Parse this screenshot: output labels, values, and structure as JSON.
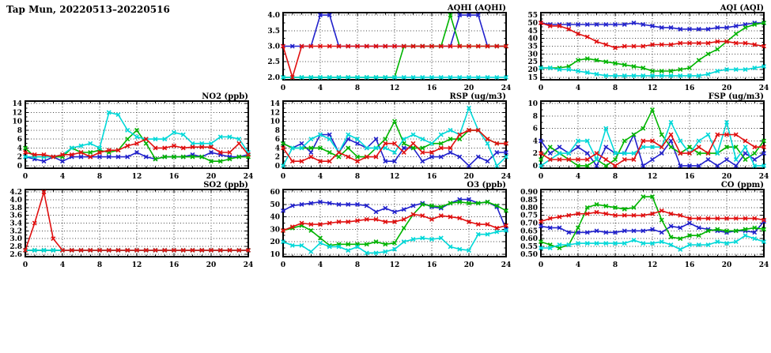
{
  "page": {
    "title": "Tap Mun, 20220513–20220516",
    "background": "#ffffff"
  },
  "colors": {
    "blue": "#2222cc",
    "green": "#00b400",
    "cyan": "#00d8d8",
    "red": "#e01010",
    "axis": "#000000",
    "grid": "#444444"
  },
  "chart_data": [
    {
      "id": "aqhi",
      "type": "line",
      "title": "AQHI (AQHI)",
      "grid": {
        "row": 0,
        "col": 1
      },
      "x_range": [
        0,
        24
      ],
      "x_step": 4,
      "x_minor": 1,
      "y_range": [
        2.0,
        4.0
      ],
      "y_step": 0.5,
      "y_decimals": 1,
      "series": [
        {
          "name": "series-blue",
          "color": "#2222cc",
          "values": [
            3,
            3,
            3,
            3,
            4,
            4,
            3,
            3,
            3,
            3,
            3,
            3,
            3,
            3,
            3,
            3,
            3,
            3,
            3,
            4,
            4,
            4,
            3,
            3,
            3
          ]
        },
        {
          "name": "series-green",
          "color": "#00b400",
          "values": [
            2,
            2,
            2,
            2,
            2,
            2,
            2,
            2,
            2,
            2,
            2,
            2,
            2,
            3,
            3,
            3,
            3,
            3,
            4,
            3,
            3,
            3,
            3,
            3,
            3
          ]
        },
        {
          "name": "series-cyan",
          "color": "#00d8d8",
          "values": [
            2,
            2,
            2,
            2,
            2,
            2,
            2,
            2,
            2,
            2,
            2,
            2,
            2,
            2,
            2,
            2,
            2,
            2,
            2,
            2,
            2,
            2,
            2,
            2,
            2
          ]
        },
        {
          "name": "series-red",
          "color": "#e01010",
          "values": [
            3,
            2,
            3,
            3,
            3,
            3,
            3,
            3,
            3,
            3,
            3,
            3,
            3,
            3,
            3,
            3,
            3,
            3,
            3,
            3,
            3,
            3,
            3,
            3,
            3
          ]
        }
      ]
    },
    {
      "id": "aqi",
      "type": "line",
      "title": "AQI (AQI)",
      "grid": {
        "row": 0,
        "col": 2
      },
      "x_range": [
        0,
        24
      ],
      "x_step": 4,
      "x_minor": 1,
      "y_range": [
        15,
        55
      ],
      "y_step": 5,
      "y_decimals": 0,
      "series": [
        {
          "name": "series-blue",
          "color": "#2222cc",
          "values": [
            50,
            49,
            49,
            49,
            49,
            49,
            49,
            49,
            49,
            49,
            50,
            49,
            48,
            47,
            47,
            46,
            46,
            46,
            46,
            47,
            47,
            48,
            49,
            50,
            50
          ]
        },
        {
          "name": "series-green",
          "color": "#00b400",
          "values": [
            21,
            21,
            21,
            22,
            26,
            27,
            26,
            25,
            24,
            23,
            22,
            21,
            19,
            19,
            19,
            20,
            21,
            26,
            30,
            33,
            38,
            43,
            47,
            49,
            50
          ]
        },
        {
          "name": "series-cyan",
          "color": "#00d8d8",
          "values": [
            21,
            21,
            20,
            20,
            19,
            18,
            17,
            16,
            16,
            16,
            16,
            16,
            16,
            16,
            16,
            16,
            16,
            16,
            17,
            19,
            20,
            20,
            20,
            21,
            22
          ]
        },
        {
          "name": "series-red",
          "color": "#e01010",
          "values": [
            50,
            48,
            48,
            46,
            43,
            41,
            38,
            36,
            34,
            35,
            35,
            35,
            36,
            36,
            36,
            37,
            37,
            37,
            37,
            38,
            38,
            37,
            37,
            36,
            35
          ]
        }
      ]
    },
    {
      "id": "no2",
      "type": "line",
      "title": "NO2 (ppb)",
      "grid": {
        "row": 1,
        "col": 0
      },
      "x_range": [
        0,
        24
      ],
      "x_step": 4,
      "x_minor": 1,
      "y_range": [
        0,
        14
      ],
      "y_step": 2,
      "y_decimals": 0,
      "series": [
        {
          "name": "series-blue",
          "color": "#2222cc",
          "values": [
            2,
            1.5,
            1,
            2,
            1,
            2,
            2,
            2,
            2,
            2,
            2,
            2,
            3,
            2,
            1.5,
            2,
            2,
            2,
            2.5,
            2,
            3,
            2.5,
            2,
            2,
            2.5
          ]
        },
        {
          "name": "series-green",
          "color": "#00b400",
          "values": [
            4,
            2,
            2,
            2,
            2,
            4,
            3,
            3,
            3.5,
            3,
            3.5,
            6,
            8,
            5,
            1.5,
            2,
            2,
            2,
            2,
            2,
            1,
            1,
            1.5,
            2,
            2
          ]
        },
        {
          "name": "series-cyan",
          "color": "#00d8d8",
          "values": [
            2,
            2,
            2,
            2,
            2.5,
            4,
            4.5,
            5,
            4,
            12,
            11.5,
            8,
            6.5,
            6,
            6,
            6,
            7.5,
            7,
            5,
            5,
            5,
            6.5,
            6.5,
            6,
            3
          ]
        },
        {
          "name": "series-red",
          "color": "#e01010",
          "values": [
            3,
            2.5,
            2.5,
            2,
            2.5,
            2.5,
            3,
            2,
            3,
            3.5,
            3.5,
            4.5,
            5,
            6,
            4,
            4,
            4.5,
            4,
            4.2,
            4.2,
            4.2,
            3,
            3,
            5,
            2.5
          ]
        }
      ]
    },
    {
      "id": "rsp",
      "type": "line",
      "title": "RSP (ug/m3)",
      "grid": {
        "row": 1,
        "col": 1
      },
      "x_range": [
        0,
        24
      ],
      "x_step": 4,
      "x_minor": 1,
      "y_range": [
        0,
        14
      ],
      "y_step": 2,
      "y_decimals": 0,
      "series": [
        {
          "name": "series-blue",
          "color": "#2222cc",
          "values": [
            5,
            4,
            5,
            3,
            7,
            7,
            3,
            6,
            5,
            4,
            6,
            1,
            1,
            4,
            4,
            1,
            2,
            2,
            3,
            2,
            0,
            2,
            1,
            3,
            3
          ]
        },
        {
          "name": "series-green",
          "color": "#00b400",
          "values": [
            5,
            4,
            4,
            4,
            4,
            3,
            2,
            4,
            2,
            2,
            4,
            6,
            10,
            5,
            4,
            4,
            5,
            5,
            6,
            6,
            8,
            8,
            6,
            5,
            5
          ]
        },
        {
          "name": "series-cyan",
          "color": "#00d8d8",
          "values": [
            0,
            4,
            4,
            6,
            7,
            6,
            3,
            7,
            6,
            4,
            4,
            4,
            3,
            6,
            7,
            6,
            5,
            7,
            8,
            7,
            13,
            8,
            5,
            0,
            2
          ]
        },
        {
          "name": "series-red",
          "color": "#e01010",
          "values": [
            4,
            1,
            1,
            2,
            1,
            1,
            3,
            2,
            1,
            2,
            2,
            5,
            5,
            3,
            5,
            3,
            3,
            4,
            4,
            7,
            8,
            8,
            6,
            5,
            5
          ]
        }
      ]
    },
    {
      "id": "fsp",
      "type": "line",
      "title": "FSP (ug/m3)",
      "grid": {
        "row": 1,
        "col": 2
      },
      "x_range": [
        0,
        24
      ],
      "x_step": 4,
      "x_minor": 1,
      "y_range": [
        0,
        10
      ],
      "y_step": 2,
      "y_decimals": 0,
      "series": [
        {
          "name": "series-blue",
          "color": "#2222cc",
          "values": [
            4,
            2,
            3,
            2,
            3,
            2,
            0,
            3,
            2,
            2,
            5,
            0,
            1,
            2,
            4,
            0,
            0,
            0,
            1,
            0,
            1,
            0,
            2,
            1,
            2
          ]
        },
        {
          "name": "series-green",
          "color": "#00b400",
          "values": [
            1,
            3,
            2,
            1,
            0,
            0,
            1,
            0,
            1,
            4,
            5,
            6,
            9,
            5,
            3,
            2,
            3,
            2,
            2,
            2,
            3,
            3,
            1,
            2,
            4
          ]
        },
        {
          "name": "series-cyan",
          "color": "#00d8d8",
          "values": [
            0,
            1,
            2,
            2,
            4,
            4,
            1,
            6,
            2,
            2,
            2,
            3,
            3,
            3,
            7,
            4,
            2,
            4,
            5,
            2,
            7,
            1,
            3,
            0,
            0
          ]
        },
        {
          "name": "series-red",
          "color": "#e01010",
          "values": [
            2,
            1,
            1,
            1,
            1,
            1,
            2,
            1,
            0,
            1,
            1,
            4,
            4,
            3,
            5,
            2,
            2,
            3,
            2,
            5,
            5,
            5,
            4,
            3,
            3
          ]
        }
      ]
    },
    {
      "id": "so2",
      "type": "line",
      "title": "SO2 (ppb)",
      "grid": {
        "row": 2,
        "col": 0
      },
      "x_range": [
        0,
        24
      ],
      "x_step": 4,
      "x_minor": 1,
      "y_range": [
        2.6,
        4.2
      ],
      "y_step": 0.2,
      "y_decimals": 1,
      "series": [
        {
          "name": "series-blue",
          "color": "#2222cc",
          "values": [
            2.7,
            2.7,
            2.7,
            2.7,
            2.7,
            2.7,
            2.7,
            2.7,
            2.7,
            2.7,
            2.7,
            2.7,
            2.7,
            2.7,
            2.7,
            2.7,
            2.7,
            2.7,
            2.7,
            2.7,
            2.7,
            2.7,
            2.7,
            2.7,
            2.7
          ]
        },
        {
          "name": "series-green",
          "color": "#00b400",
          "values": [
            2.7,
            2.7,
            2.7,
            2.7,
            2.7,
            2.7,
            2.7,
            2.7,
            2.7,
            2.7,
            2.7,
            2.7,
            2.7,
            2.7,
            2.7,
            2.7,
            2.7,
            2.7,
            2.7,
            2.7,
            2.7,
            2.7,
            2.7,
            2.7,
            2.7
          ]
        },
        {
          "name": "series-cyan",
          "color": "#00d8d8",
          "values": [
            2.7,
            2.7,
            2.7,
            2.7,
            2.7,
            2.7,
            2.7,
            2.7,
            2.7,
            2.7,
            2.7,
            2.7,
            2.7,
            2.7,
            2.7,
            2.7,
            2.7,
            2.7,
            2.7,
            2.7,
            2.7,
            2.7,
            2.7,
            2.7,
            2.7
          ]
        },
        {
          "name": "series-red",
          "color": "#e01010",
          "values": [
            2.7,
            3.4,
            4.2,
            3.0,
            2.7,
            2.7,
            2.7,
            2.7,
            2.7,
            2.7,
            2.7,
            2.7,
            2.7,
            2.7,
            2.7,
            2.7,
            2.7,
            2.7,
            2.7,
            2.7,
            2.7,
            2.7,
            2.7,
            2.7,
            2.7
          ]
        }
      ]
    },
    {
      "id": "o3",
      "type": "line",
      "title": "O3 (ppb)",
      "grid": {
        "row": 2,
        "col": 1
      },
      "x_range": [
        0,
        24
      ],
      "x_step": 4,
      "x_minor": 1,
      "y_range": [
        10,
        60
      ],
      "y_step": 10,
      "y_decimals": 0,
      "series": [
        {
          "name": "series-blue",
          "color": "#2222cc",
          "values": [
            45,
            49,
            50,
            51,
            52,
            51,
            50,
            50,
            50,
            49,
            44,
            47,
            44,
            46,
            49,
            51,
            48,
            47,
            51,
            54,
            54,
            51,
            52,
            48,
            30
          ]
        },
        {
          "name": "series-green",
          "color": "#00b400",
          "values": [
            29,
            31,
            33,
            29,
            23,
            17,
            18,
            18,
            18,
            18,
            20,
            18,
            19,
            31,
            42,
            50,
            49,
            48,
            51,
            52,
            51,
            51,
            52,
            49,
            45
          ]
        },
        {
          "name": "series-cyan",
          "color": "#00d8d8",
          "values": [
            20,
            17,
            17,
            12,
            19,
            16,
            16,
            13,
            16,
            11,
            11,
            12,
            14,
            20,
            22,
            23,
            22,
            23,
            16,
            14,
            13,
            26,
            26,
            28,
            29
          ]
        },
        {
          "name": "series-red",
          "color": "#e01010",
          "values": [
            29,
            32,
            35,
            34,
            34,
            35,
            36,
            36,
            37,
            38,
            38,
            36,
            36,
            38,
            42,
            41,
            38,
            41,
            40,
            39,
            36,
            34,
            34,
            31,
            33
          ]
        }
      ]
    },
    {
      "id": "co",
      "type": "line",
      "title": "CO (ppm)",
      "grid": {
        "row": 2,
        "col": 2
      },
      "x_range": [
        0,
        24
      ],
      "x_step": 4,
      "x_minor": 1,
      "y_range": [
        0.5,
        0.9
      ],
      "y_step": 0.05,
      "y_decimals": 2,
      "series": [
        {
          "name": "series-blue",
          "color": "#2222cc",
          "values": [
            0.68,
            0.67,
            0.67,
            0.64,
            0.64,
            0.64,
            0.65,
            0.64,
            0.64,
            0.65,
            0.65,
            0.65,
            0.66,
            0.64,
            0.68,
            0.67,
            0.7,
            0.67,
            0.66,
            0.65,
            0.64,
            0.65,
            0.65,
            0.64,
            0.71
          ]
        },
        {
          "name": "series-green",
          "color": "#00b400",
          "values": [
            0.58,
            0.56,
            0.54,
            0.56,
            0.67,
            0.8,
            0.82,
            0.81,
            0.8,
            0.79,
            0.8,
            0.87,
            0.87,
            0.72,
            0.61,
            0.6,
            0.62,
            0.62,
            0.65,
            0.66,
            0.65,
            0.65,
            0.66,
            0.67,
            0.66
          ]
        },
        {
          "name": "series-cyan",
          "color": "#00d8d8",
          "values": [
            0.54,
            0.54,
            0.56,
            0.56,
            0.57,
            0.57,
            0.57,
            0.57,
            0.57,
            0.57,
            0.59,
            0.57,
            0.57,
            0.58,
            0.56,
            0.53,
            0.56,
            0.56,
            0.56,
            0.58,
            0.57,
            0.58,
            0.62,
            0.6,
            0.58
          ]
        },
        {
          "name": "series-red",
          "color": "#e01010",
          "values": [
            0.71,
            0.73,
            0.74,
            0.75,
            0.76,
            0.76,
            0.77,
            0.76,
            0.75,
            0.75,
            0.75,
            0.75,
            0.76,
            0.78,
            0.76,
            0.75,
            0.73,
            0.73,
            0.73,
            0.73,
            0.73,
            0.73,
            0.73,
            0.73,
            0.72
          ]
        }
      ]
    }
  ]
}
